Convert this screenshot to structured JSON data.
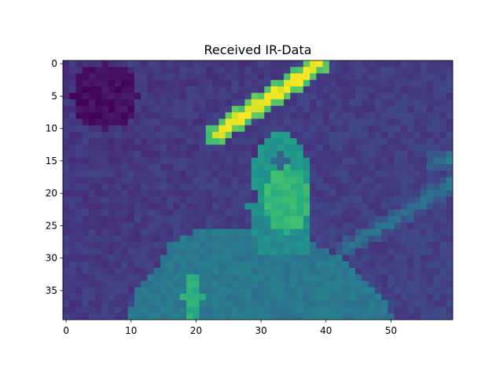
{
  "chart_data": {
    "type": "heatmap",
    "title": "Received IR-Data",
    "xlabel": "",
    "ylabel": "",
    "columns": 60,
    "rows": 40,
    "xlim": [
      -0.5,
      59.5
    ],
    "ylim": [
      39.5,
      -0.5
    ],
    "x_ticks": [
      0,
      10,
      20,
      30,
      40,
      50
    ],
    "y_ticks": [
      0,
      5,
      10,
      15,
      20,
      25,
      30,
      35
    ],
    "colormap": "viridis",
    "value_range": [
      0,
      1
    ],
    "grid": false,
    "legend": "none",
    "background_level": 0.17,
    "regions": [
      {
        "name": "dark-upper-left",
        "shape": "ellipse",
        "cx": 6,
        "cy": 5,
        "rx": 5,
        "ry": 5,
        "level": 0.04
      },
      {
        "name": "shoulders",
        "shape": "polygon",
        "points": [
          [
            9,
            40
          ],
          [
            11,
            35
          ],
          [
            14,
            32
          ],
          [
            16,
            28
          ],
          [
            20,
            26
          ],
          [
            25,
            25.5
          ],
          [
            31,
            25.5
          ],
          [
            36,
            27
          ],
          [
            40,
            28.5
          ],
          [
            44,
            31
          ],
          [
            47,
            34
          ],
          [
            50,
            38
          ],
          [
            52,
            40
          ]
        ],
        "level": 0.4
      },
      {
        "name": "neck",
        "shape": "polygon",
        "points": [
          [
            28,
            22
          ],
          [
            38,
            22
          ],
          [
            37,
            30
          ],
          [
            30,
            30
          ]
        ],
        "level": 0.48
      },
      {
        "name": "head",
        "shape": "ellipse",
        "cx": 33,
        "cy": 17,
        "rx": 4.5,
        "ry": 6.5,
        "level": 0.52
      },
      {
        "name": "face-warm",
        "shape": "ellipse",
        "cx": 34,
        "cy": 21,
        "rx": 3.5,
        "ry": 5,
        "level": 0.66
      },
      {
        "name": "eye-dark-spot",
        "shape": "ellipse",
        "cx": 33,
        "cy": 15,
        "rx": 1.2,
        "ry": 1,
        "level": 0.32
      },
      {
        "name": "bright-left-patch",
        "shape": "ellipse",
        "cx": 19.5,
        "cy": 36,
        "rx": 1.5,
        "ry": 3.5,
        "level": 0.62
      }
    ],
    "streaks": [
      {
        "name": "hot-diagonal-streak",
        "from": [
          23,
          11
        ],
        "to": [
          39,
          0
        ],
        "width": 1.6,
        "level": 0.97
      },
      {
        "name": "right-diagonal-streak",
        "from": [
          43,
          28.5
        ],
        "to": [
          59.5,
          18.5
        ],
        "width": 1.4,
        "level": 0.36
      },
      {
        "name": "right-edge-highlight",
        "from": [
          57,
          15
        ],
        "to": [
          59.5,
          14.5
        ],
        "width": 1.5,
        "level": 0.4
      }
    ]
  }
}
